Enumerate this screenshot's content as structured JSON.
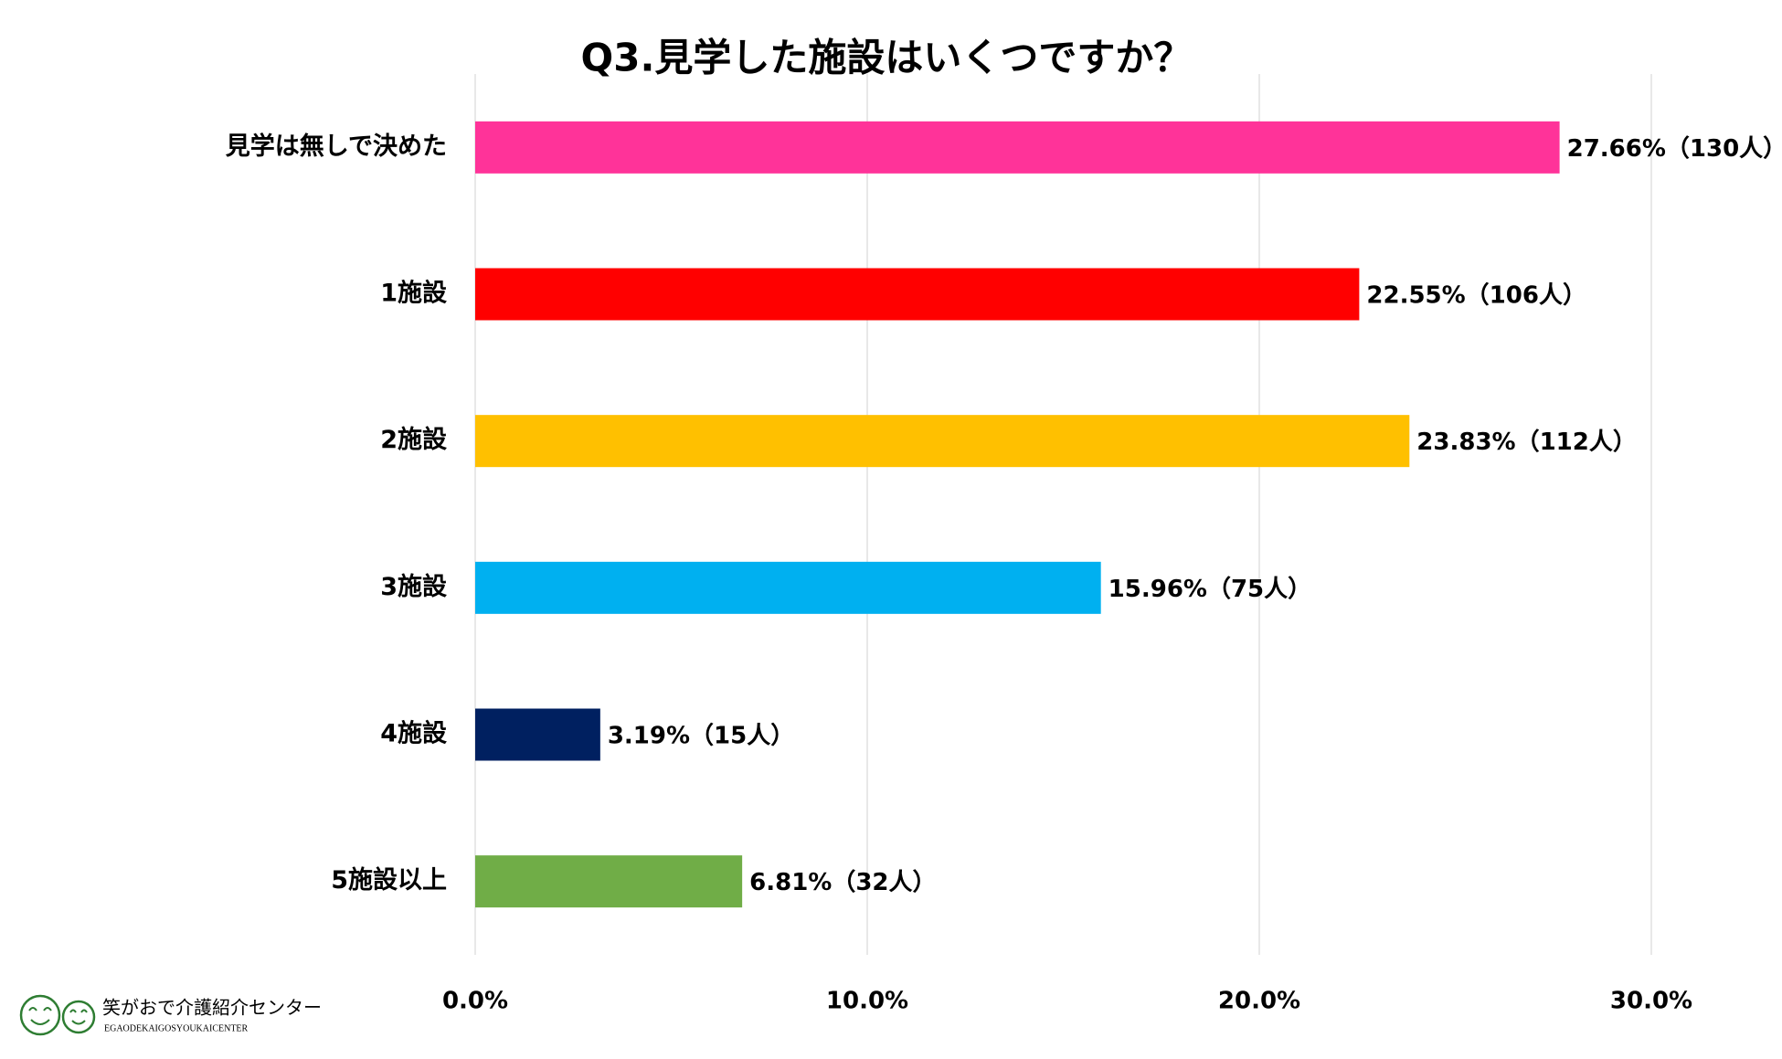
{
  "chart_data": {
    "type": "barh",
    "title": "Q3.見学した施設はいくつですか？",
    "categories": [
      "見学は無しで決めた",
      "1施設",
      "2施設",
      "3施設",
      "4施設",
      "5施設以上"
    ],
    "values": [
      27.66,
      22.55,
      23.83,
      15.96,
      3.19,
      6.81
    ],
    "value_labels": [
      "27.66%（130人）",
      "22.55%（106人）",
      "23.83%（112人）",
      "15.96%（75人）",
      "3.19%（15人）",
      "6.81%（32人）"
    ],
    "colors": [
      "#ff3399",
      "#ff0000",
      "#ffc000",
      "#00b0f0",
      "#002060",
      "#70ad47"
    ],
    "xlim": [
      0,
      30
    ],
    "xticks": [
      {
        "value": 0,
        "label": "0.0%"
      },
      {
        "value": 10,
        "label": "10.0%"
      },
      {
        "value": 20,
        "label": "20.0%"
      },
      {
        "value": 30,
        "label": "30.0%"
      }
    ],
    "grid": true
  },
  "logo": {
    "name": "笑がおで介護紹介センター",
    "subtitle": "EGAODEKAIGOSYOUKAICENTER"
  }
}
